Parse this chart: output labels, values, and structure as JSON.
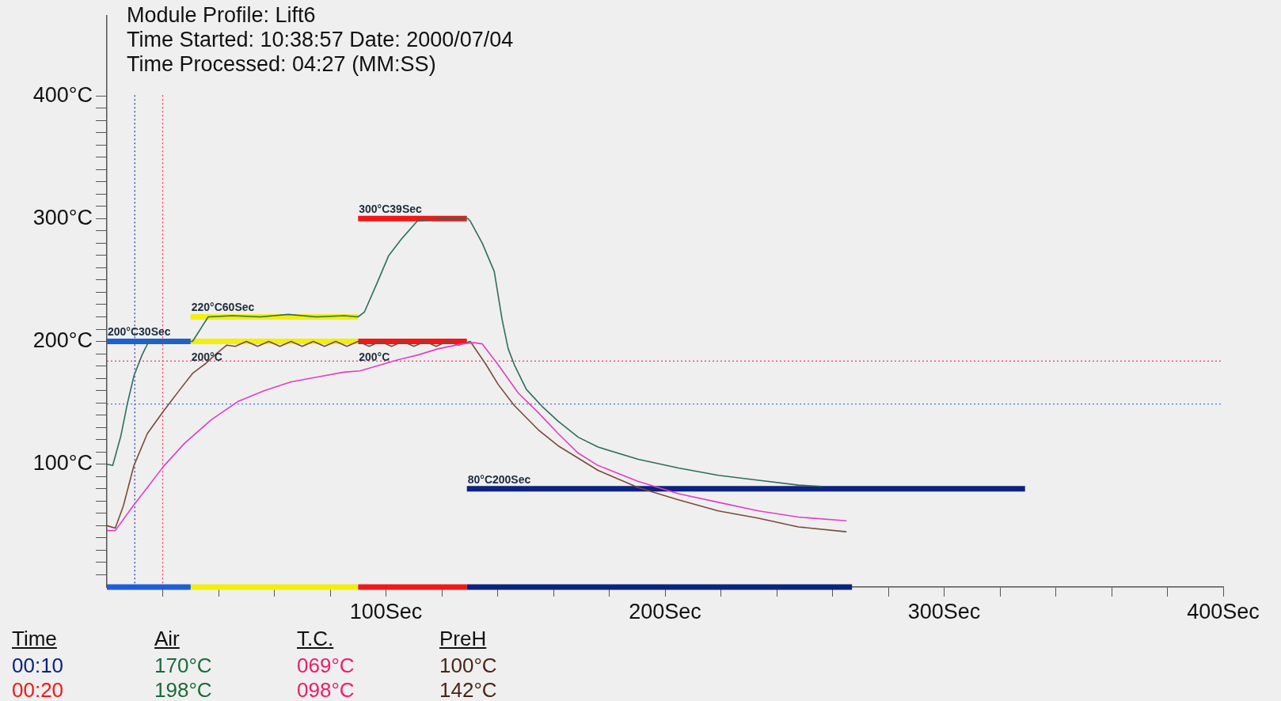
{
  "chart_data": {
    "type": "line",
    "title": "Module Profile: Lift6",
    "subtitle": "Time Started: 10:38:57  Date: 2000/07/04",
    "annotations": [
      "Time Processed: 04:27 (MM:SS)",
      "Time",
      "Air",
      "T.C.",
      "PreH",
      "00:10",
      "170°C",
      "069°C",
      "100°C",
      "00:20",
      "198°C",
      "098°C",
      "142°C"
    ],
    "xlim": [
      0,
      400
    ],
    "ylim": [
      0,
      465
    ],
    "xticks": [
      {
        "value": 20,
        "label": null
      },
      {
        "value": 40,
        "label": null
      },
      {
        "value": 60,
        "label": null
      },
      {
        "value": 80,
        "label": null
      },
      {
        "value": 100,
        "label": "100Sec"
      },
      {
        "value": 120,
        "label": null
      },
      {
        "value": 140,
        "label": null
      },
      {
        "value": 160,
        "label": null
      },
      {
        "value": 180,
        "label": null
      },
      {
        "value": 200,
        "label": "200Sec"
      },
      {
        "value": 220,
        "label": null
      },
      {
        "value": 240,
        "label": null
      },
      {
        "value": 260,
        "label": null
      },
      {
        "value": 280,
        "label": null
      },
      {
        "value": 300,
        "label": "300Sec"
      },
      {
        "value": 320,
        "label": null
      },
      {
        "value": 340,
        "label": null
      },
      {
        "value": 360,
        "label": null
      },
      {
        "value": 380,
        "label": null
      },
      {
        "value": 400,
        "label": "400Sec"
      }
    ],
    "yticks": [
      {
        "value": 10,
        "label": null
      },
      {
        "value": 20,
        "label": null
      },
      {
        "value": 30,
        "label": null
      },
      {
        "value": 40,
        "label": null
      },
      {
        "value": 50,
        "label": null
      },
      {
        "value": 60,
        "label": null
      },
      {
        "value": 70,
        "label": null
      },
      {
        "value": 80,
        "label": null
      },
      {
        "value": 90,
        "label": null
      },
      {
        "value": 100,
        "label": "100°C"
      },
      {
        "value": 110,
        "label": null
      },
      {
        "value": 120,
        "label": null
      },
      {
        "value": 130,
        "label": null
      },
      {
        "value": 140,
        "label": null
      },
      {
        "value": 150,
        "label": null
      },
      {
        "value": 160,
        "label": null
      },
      {
        "value": 170,
        "label": null
      },
      {
        "value": 180,
        "label": null
      },
      {
        "value": 190,
        "label": null
      },
      {
        "value": 200,
        "label": "200°C"
      },
      {
        "value": 210,
        "label": null
      },
      {
        "value": 220,
        "label": null
      },
      {
        "value": 230,
        "label": null
      },
      {
        "value": 240,
        "label": null
      },
      {
        "value": 250,
        "label": null
      },
      {
        "value": 260,
        "label": null
      },
      {
        "value": 270,
        "label": null
      },
      {
        "value": 280,
        "label": null
      },
      {
        "value": 290,
        "label": null
      },
      {
        "value": 300,
        "label": "300°C"
      },
      {
        "value": 310,
        "label": null
      },
      {
        "value": 320,
        "label": null
      },
      {
        "value": 330,
        "label": null
      },
      {
        "value": 340,
        "label": null
      },
      {
        "value": 350,
        "label": null
      },
      {
        "value": 360,
        "label": null
      },
      {
        "value": 370,
        "label": null
      },
      {
        "value": 380,
        "label": null
      },
      {
        "value": 390,
        "label": null
      },
      {
        "value": 400,
        "label": "400°C"
      }
    ],
    "marker": "none",
    "line_style": "solid",
    "legend": false,
    "ref_lines": [
      {
        "axis": "x",
        "value": 10,
        "color": "#2a3fb0",
        "line_style": "dotted"
      },
      {
        "axis": "x",
        "value": 20,
        "color": "#ff3060",
        "line_style": "dotted"
      },
      {
        "axis": "y",
        "value": 184,
        "color": "#ff3060",
        "line_style": "dotted"
      },
      {
        "axis": "y",
        "value": 149,
        "color": "#4a78e0",
        "line_style": "dotted"
      }
    ],
    "series": [
      {
        "color": "#2e6e5c",
        "x": [
          0,
          2.1,
          5,
          7.3,
          9.7,
          12.6,
          15,
          30.7,
          36.3,
          45,
          55,
          65,
          75,
          85,
          90,
          92.3,
          96.7,
          101,
          105.4,
          111.2,
          120,
          129.4,
          130.2,
          134.5,
          138.8,
          141.6,
          143.8,
          146,
          150.3,
          156,
          161.7,
          168.9,
          176,
          190.4,
          204.8,
          219.1,
          233.5,
          247.8,
          256.4
        ],
        "values": [
          100,
          99,
          123,
          149,
          172,
          189,
          200,
          200,
          220,
          221,
          220,
          222,
          220,
          221,
          220,
          224,
          247,
          270,
          283,
          298,
          300,
          300,
          298,
          280,
          257,
          218,
          194,
          181,
          161,
          147,
          135,
          122,
          114,
          104,
          97,
          91,
          87,
          83,
          82
        ]
      },
      {
        "color": "#e040c0",
        "x": [
          0,
          3,
          9.7,
          14.5,
          20.2,
          27.8,
          37.3,
          46.9,
          56.4,
          65.9,
          75.4,
          85,
          90.7,
          104.3,
          111.5,
          118.7,
          127.3,
          131.6,
          134.5,
          140.2,
          147.4,
          154.6,
          161.7,
          168.9,
          176,
          190.4,
          204.8,
          219.1,
          233.5,
          247.8,
          265
        ],
        "values": [
          46,
          46,
          67,
          81,
          98,
          117,
          136,
          151,
          160,
          167,
          171,
          175,
          176,
          185,
          189,
          194,
          198,
          199,
          198,
          181,
          158,
          142,
          125,
          109,
          99,
          86,
          76,
          69,
          62,
          57,
          54
        ]
      },
      {
        "color": "#7a4a3c",
        "x": [
          0,
          3,
          5.9,
          9.7,
          14.5,
          20.2,
          25.9,
          30.7,
          35.4,
          39.2,
          43,
          46,
          50,
          54,
          58,
          62,
          66,
          70,
          74,
          78,
          82,
          86,
          90,
          94,
          98,
          102,
          106,
          110,
          114,
          118,
          122,
          126,
          130.2,
          135.9,
          140.2,
          145.9,
          154.6,
          161.7,
          176,
          190.4,
          204.8,
          219.1,
          233.5,
          247.8,
          265
        ],
        "values": [
          50,
          48,
          66,
          99,
          125,
          143,
          160,
          174,
          182,
          190,
          197,
          196,
          200,
          196,
          200,
          196,
          200,
          196,
          200,
          196,
          200,
          196,
          200,
          196,
          200,
          196,
          200,
          196,
          200,
          196,
          200,
          197,
          200,
          181,
          165,
          148,
          128,
          115,
          95,
          81,
          71,
          62,
          56,
          49,
          45
        ]
      },
      {
        "name": "200°C30Sec",
        "color": "#1f5fd6",
        "x": [
          0,
          30
        ],
        "values": [
          200,
          200
        ]
      },
      {
        "name": "220°C60Sec",
        "color": "#f2ee10",
        "x": [
          30,
          90
        ],
        "values": [
          220,
          220
        ]
      },
      {
        "name": "200°C",
        "color": "#f2ee10",
        "x": [
          30,
          90
        ],
        "values": [
          200,
          200
        ]
      },
      {
        "name": "300°C39Sec",
        "color": "#f01818",
        "x": [
          90,
          129
        ],
        "values": [
          300,
          300
        ]
      },
      {
        "name": "200°C",
        "color": "#f01818",
        "x": [
          90,
          129
        ],
        "values": [
          200,
          200
        ]
      },
      {
        "name": "80°C200Sec",
        "color": "#0c2280",
        "x": [
          129,
          329
        ],
        "values": [
          80,
          80
        ]
      },
      {
        "color": "#1f5fd6",
        "x": [
          0,
          30
        ],
        "values": [
          0,
          0
        ]
      },
      {
        "color": "#f2ee10",
        "x": [
          30,
          90
        ],
        "values": [
          0,
          0
        ]
      },
      {
        "color": "#f01818",
        "x": [
          90,
          129
        ],
        "values": [
          0,
          0
        ]
      },
      {
        "color": "#0c2280",
        "x": [
          129,
          267
        ],
        "values": [
          0,
          0
        ]
      }
    ]
  }
}
